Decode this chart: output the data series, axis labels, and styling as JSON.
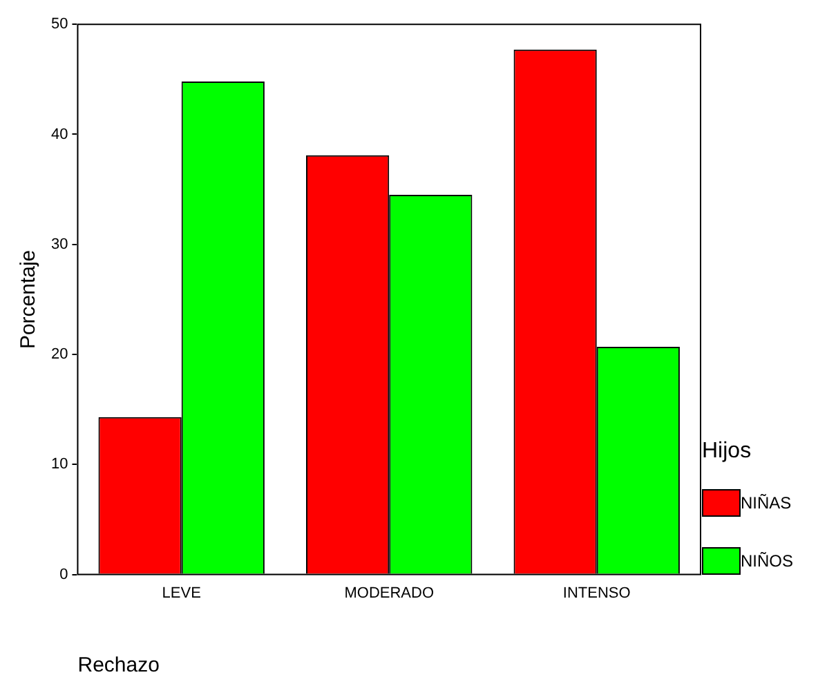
{
  "chart_data": {
    "type": "bar",
    "xlabel": "Rechazo",
    "ylabel": "Porcentaje",
    "legend_title": "Hijos",
    "legend": "right",
    "categories": [
      "LEVE",
      "MODERADO",
      "INTENSO"
    ],
    "series": [
      {
        "name": "NIÑAS",
        "color": "#ff0000",
        "values": [
          14.3,
          38.1,
          47.7
        ]
      },
      {
        "name": "NIÑOS",
        "color": "#00ff00",
        "values": [
          44.8,
          34.5,
          20.7
        ]
      }
    ],
    "ylim": [
      0,
      50
    ],
    "yticks": [
      0,
      10,
      20,
      30,
      40,
      50
    ]
  }
}
